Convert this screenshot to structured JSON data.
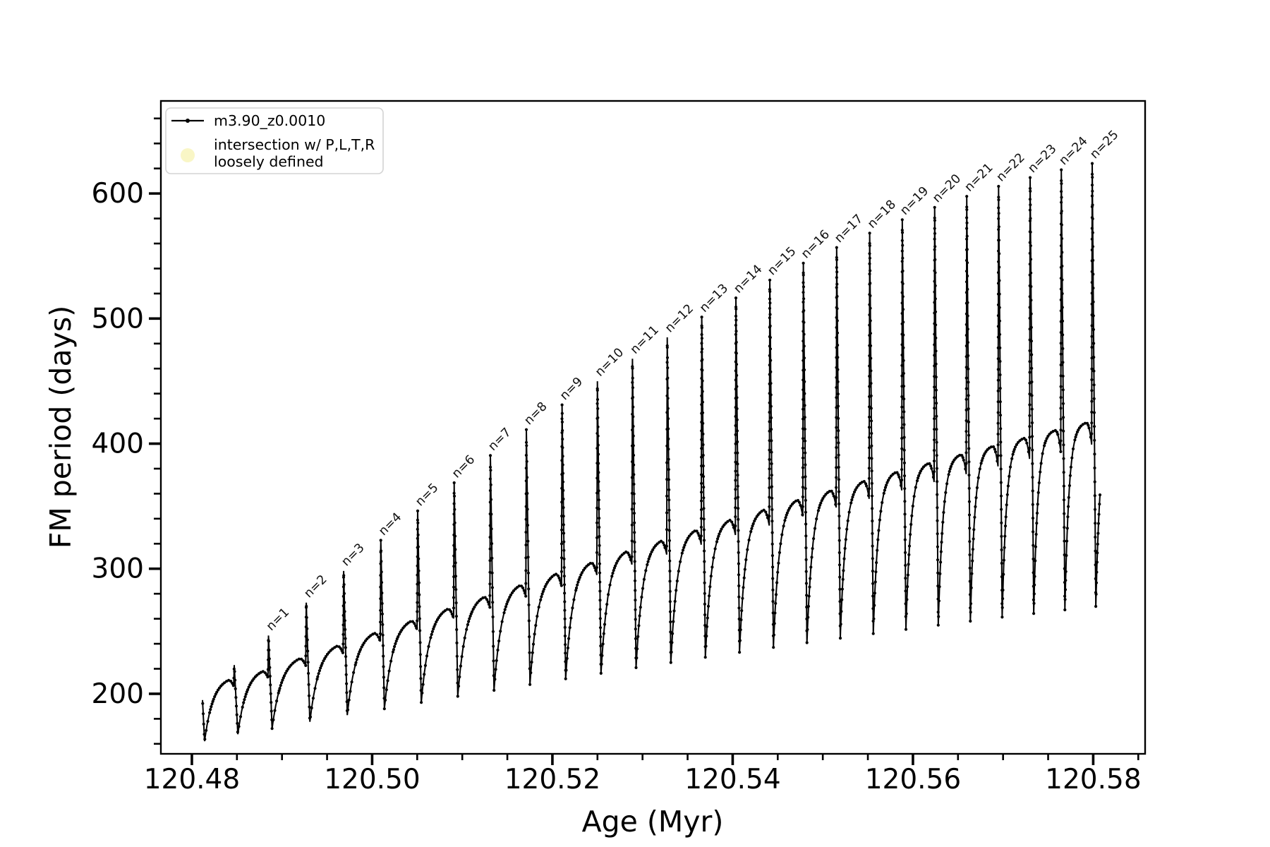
{
  "figure": {
    "bg": "#ffffff"
  },
  "colors": {
    "line": "#000000",
    "legend_border": "#d4d4d4",
    "legend_marker2_fill": "#f9f6c6"
  },
  "chart_data": {
    "type": "line",
    "title": "",
    "xlabel": "Age (Myr)",
    "ylabel": "FM period (days)",
    "xlim": [
      120.47656,
      120.58576
    ],
    "ylim": [
      152,
      674
    ],
    "x_major_ticks": [
      120.48,
      120.5,
      120.52,
      120.54,
      120.56,
      120.58
    ],
    "x_tick_labels": [
      "120.48",
      "120.50",
      "120.52",
      "120.54",
      "120.56",
      "120.58"
    ],
    "x_minor_step": 0.005,
    "y_major_ticks": [
      200,
      300,
      400,
      500,
      600
    ],
    "y_tick_labels": [
      "200",
      "300",
      "400",
      "500",
      "600"
    ],
    "y_minor_step": 20,
    "grid": false,
    "legend": {
      "position": "upper-left",
      "entries": [
        {
          "label": "m3.90_z0.0010",
          "marker": "line-with-dot",
          "color": "#000000"
        },
        {
          "label_line1": "intersection w/ P,L,T,R",
          "label_line2": "loosely defined",
          "marker": "circle",
          "color": "#f9f6c6"
        }
      ]
    },
    "series_name": "m3.90_z0.0010",
    "model": {
      "comment": "thermal-pulse-like cycles: dip -> saturating arc -> narrow spike (tip) -> crash to next dip",
      "start": {
        "age": 120.48118,
        "period": 195.0
      },
      "first_dip": {
        "age": 120.48141,
        "period": 162.1
      },
      "pre_cycle": {
        "spike_age": 120.4847,
        "tip": 223.0,
        "arc_top": 214.2,
        "dip_after": 167.7
      },
      "spikes": [
        {
          "n": 1,
          "label": "n=1",
          "age": 120.4885,
          "tip": 246.6,
          "arc_top": 221.3,
          "dip_after": 172.2
        },
        {
          "n": 2,
          "label": "n=2",
          "age": 120.49269,
          "tip": 272.9,
          "arc_top": 231.7,
          "dip_after": 177.6
        },
        {
          "n": 3,
          "label": "n=3",
          "age": 120.49684,
          "tip": 298.2,
          "arc_top": 241.9,
          "dip_after": 182.9
        },
        {
          "n": 4,
          "label": "n=4",
          "age": 120.50096,
          "tip": 322.7,
          "arc_top": 252.1,
          "dip_after": 188.0
        },
        {
          "n": 5,
          "label": "n=5",
          "age": 120.50505,
          "tip": 346.2,
          "arc_top": 261.9,
          "dip_after": 193.1
        },
        {
          "n": 6,
          "label": "n=6",
          "age": 120.5091,
          "tip": 368.7,
          "arc_top": 271.6,
          "dip_after": 198.0
        },
        {
          "n": 7,
          "label": "n=7",
          "age": 120.51312,
          "tip": 390.5,
          "arc_top": 281.0,
          "dip_after": 202.8
        },
        {
          "n": 8,
          "label": "n=8",
          "age": 120.51711,
          "tip": 411.2,
          "arc_top": 290.3,
          "dip_after": 207.4
        },
        {
          "n": 9,
          "label": "n=9",
          "age": 120.52107,
          "tip": 431.0,
          "arc_top": 299.3,
          "dip_after": 212.0
        },
        {
          "n": 10,
          "label": "n=10",
          "age": 120.52499,
          "tip": 449.9,
          "arc_top": 308.2,
          "dip_after": 216.4
        },
        {
          "n": 11,
          "label": "n=11",
          "age": 120.52888,
          "tip": 467.9,
          "arc_top": 316.9,
          "dip_after": 220.9
        },
        {
          "n": 12,
          "label": "n=12",
          "age": 120.53274,
          "tip": 485.0,
          "arc_top": 325.3,
          "dip_after": 225.0
        },
        {
          "n": 13,
          "label": "n=13",
          "age": 120.53657,
          "tip": 501.2,
          "arc_top": 333.6,
          "dip_after": 229.2
        },
        {
          "n": 14,
          "label": "n=14",
          "age": 120.54036,
          "tip": 516.5,
          "arc_top": 341.7,
          "dip_after": 233.2
        },
        {
          "n": 15,
          "label": "n=15",
          "age": 120.54412,
          "tip": 530.8,
          "arc_top": 349.6,
          "dip_after": 237.1
        },
        {
          "n": 16,
          "label": "n=16",
          "age": 120.54784,
          "tip": 544.3,
          "arc_top": 357.3,
          "dip_after": 240.9
        },
        {
          "n": 17,
          "label": "n=17",
          "age": 120.55154,
          "tip": 556.8,
          "arc_top": 364.7,
          "dip_after": 244.5
        },
        {
          "n": 18,
          "label": "n=18",
          "age": 120.5552,
          "tip": 568.3,
          "arc_top": 372.0,
          "dip_after": 248.1
        },
        {
          "n": 19,
          "label": "n=19",
          "age": 120.55882,
          "tip": 579.0,
          "arc_top": 379.1,
          "dip_after": 251.5
        },
        {
          "n": 20,
          "label": "n=20",
          "age": 120.56241,
          "tip": 588.9,
          "arc_top": 386.0,
          "dip_after": 254.9
        },
        {
          "n": 21,
          "label": "n=21",
          "age": 120.56597,
          "tip": 597.7,
          "arc_top": 392.7,
          "dip_after": 258.1
        },
        {
          "n": 22,
          "label": "n=22",
          "age": 120.5695,
          "tip": 605.7,
          "arc_top": 399.2,
          "dip_after": 261.3
        },
        {
          "n": 23,
          "label": "n=23",
          "age": 120.573,
          "tip": 612.7,
          "arc_top": 405.5,
          "dip_after": 264.2
        },
        {
          "n": 24,
          "label": "n=24",
          "age": 120.57646,
          "tip": 618.9,
          "arc_top": 411.6,
          "dip_after": 267.1
        },
        {
          "n": 25,
          "label": "n=25",
          "age": 120.57989,
          "tip": 624.0,
          "arc_top": 417.6,
          "dip_after": 269.9
        }
      ],
      "end": {
        "arc_top": 422.6,
        "age_end": 120.58075,
        "next_spike_gap": 0.00334
      },
      "arc_tau_start": 0.3,
      "arc_tau_slope": 0.006,
      "arc_tau_min": 0.16,
      "dome_start": 0.8,
      "dome_drop": 0.12,
      "spike_rise_lead": 6e-05,
      "dip_lag": 0.0004
    },
    "annotations_rotation_deg": -45
  }
}
